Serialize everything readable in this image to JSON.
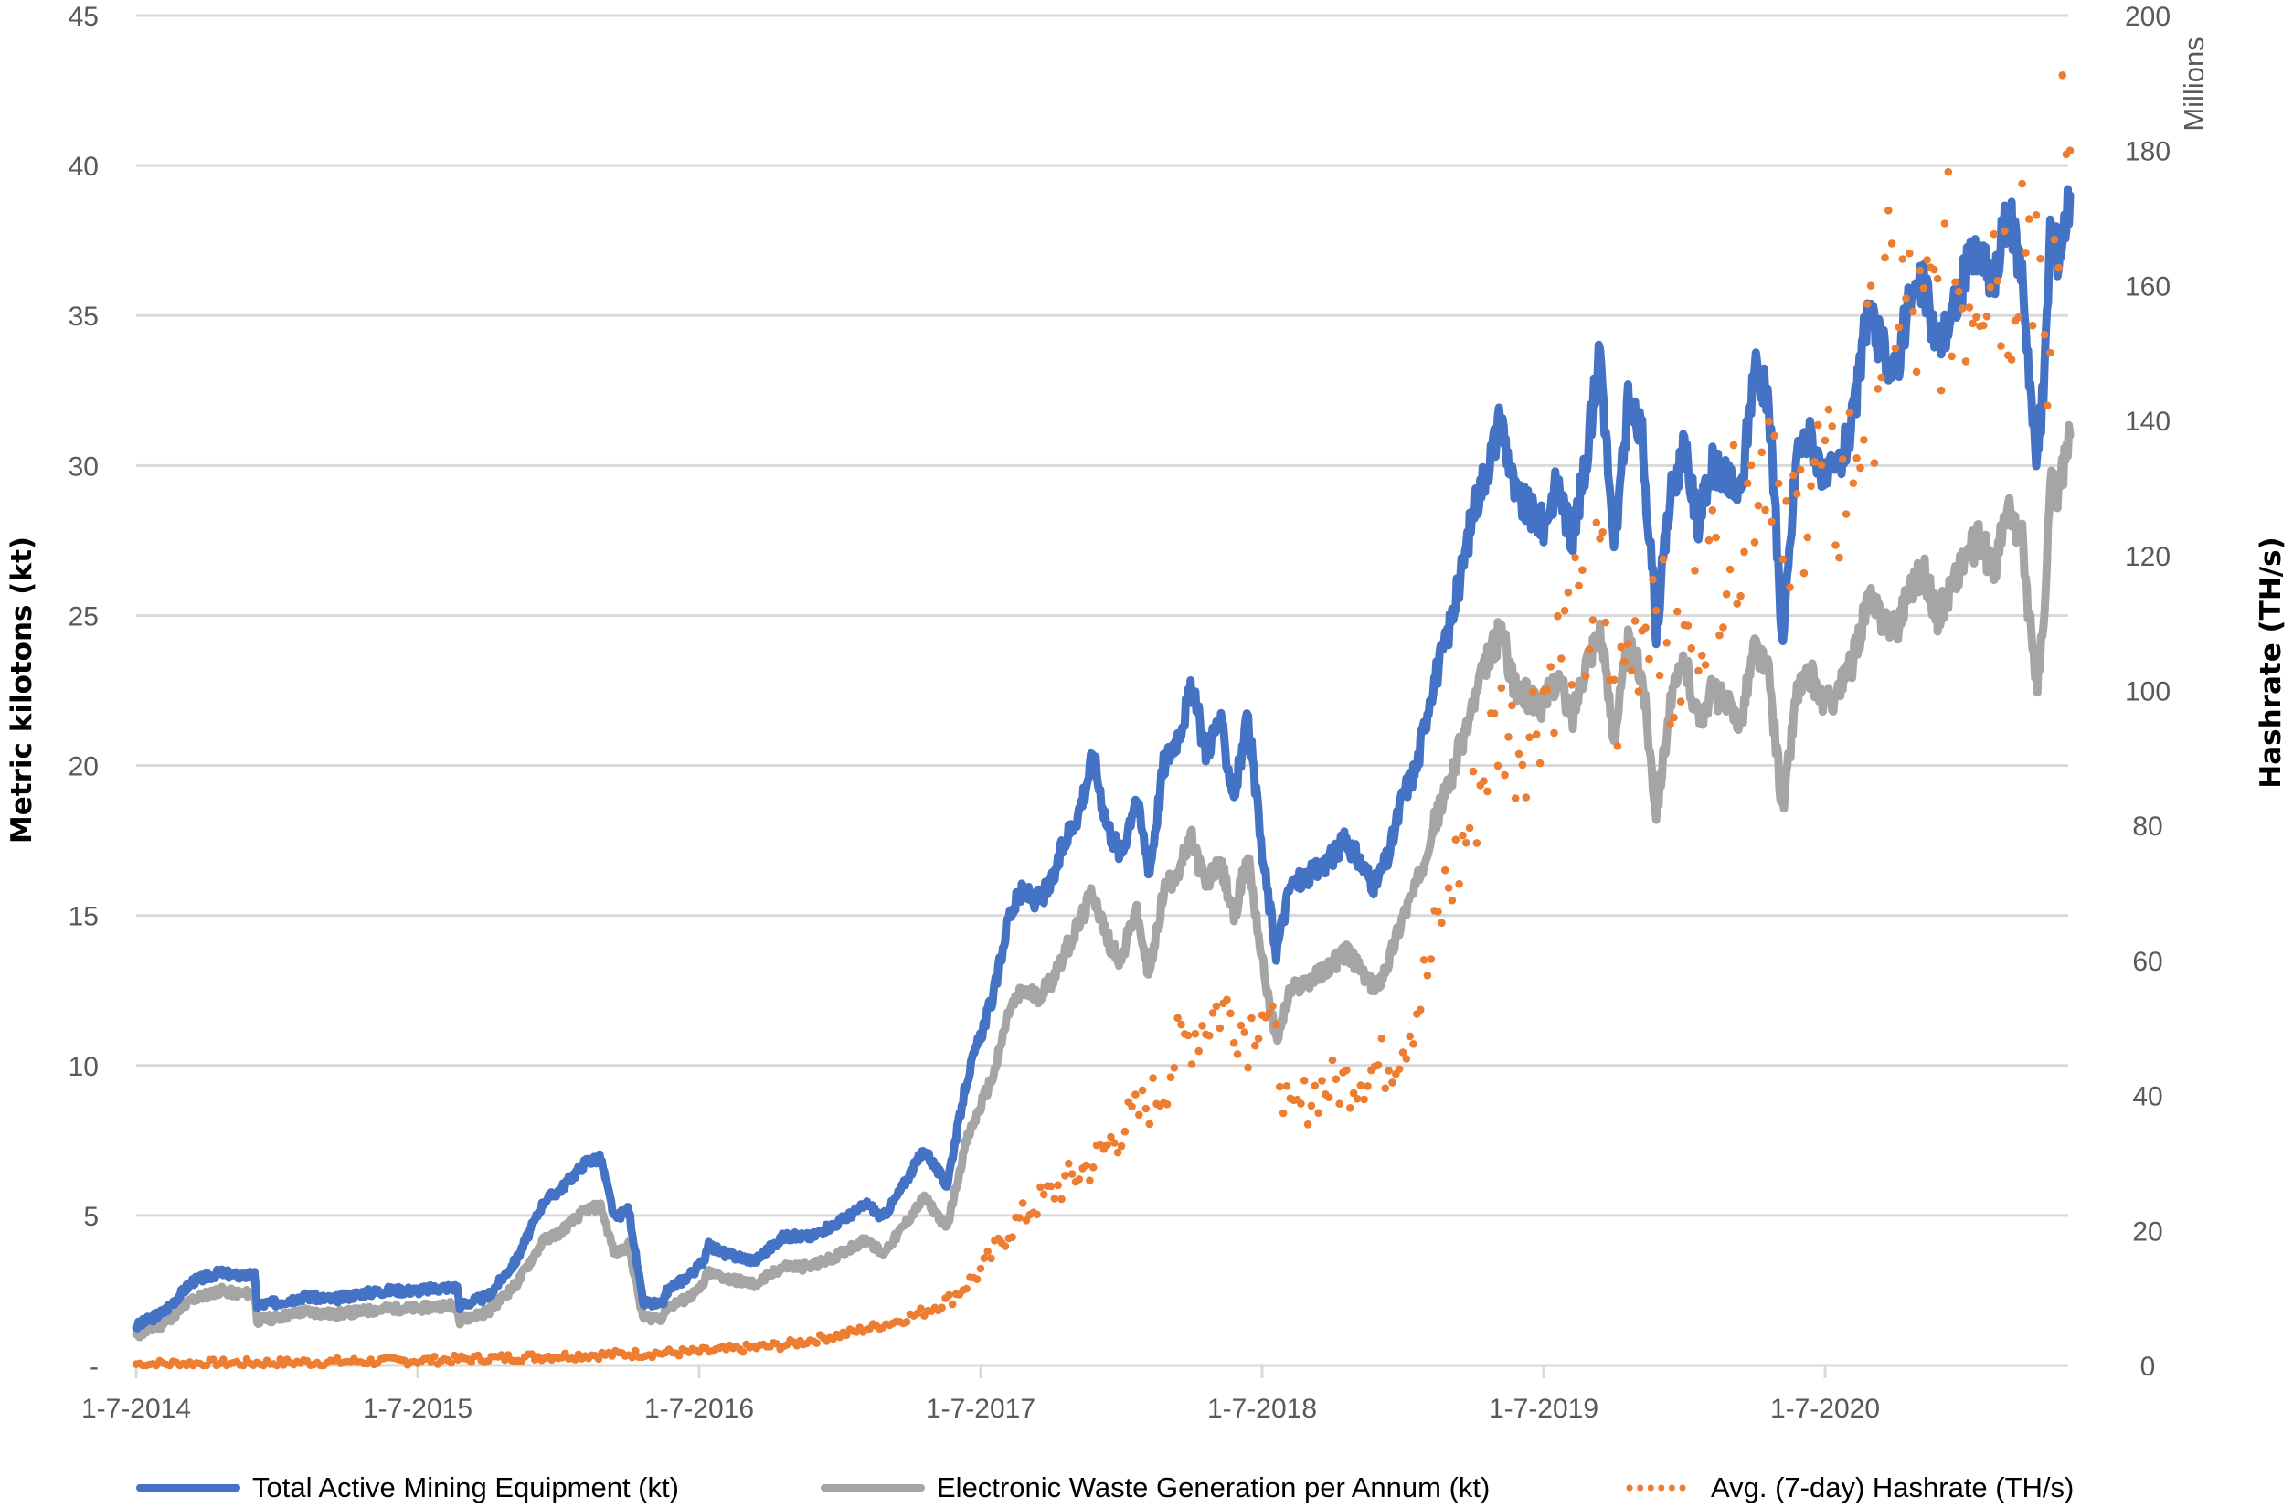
{
  "chart_data": {
    "type": "line",
    "title": "",
    "xlabel": "",
    "ylabel": "Metric kilotons (kt)",
    "y2label": "Hashrate (TH/s)",
    "y2_unit_label": "Millions",
    "ylim": [
      0,
      45
    ],
    "y2lim": [
      0,
      200
    ],
    "grid": true,
    "legend_position": "bottom",
    "x_tick_labels": [
      "1-7-2014",
      "1-7-2015",
      "1-7-2016",
      "1-7-2017",
      "1-7-2018",
      "1-7-2019",
      "1-7-2020"
    ],
    "y_tick_labels": [
      "-",
      "5",
      "10",
      "15",
      "20",
      "25",
      "30",
      "35",
      "40",
      "45"
    ],
    "y_tick_values": [
      0,
      5,
      10,
      15,
      20,
      25,
      30,
      35,
      40,
      45
    ],
    "y2_tick_labels": [
      "0",
      "20",
      "40",
      "60",
      "80",
      "100",
      "120",
      "140",
      "160",
      "180",
      "200"
    ],
    "y2_tick_values": [
      0,
      20,
      40,
      60,
      80,
      100,
      120,
      140,
      160,
      180,
      200
    ],
    "x_start_year": 2014.5,
    "x_end_year": 2021.37,
    "series": [
      {
        "name": "Total Active Mining Equipment (kt)",
        "axis": "left",
        "color": "#4472C4",
        "style": "solid",
        "x": [
          2014.5,
          2014.6,
          2014.7,
          2014.8,
          2014.85,
          2014.92,
          2014.93,
          2015.0,
          2015.1,
          2015.2,
          2015.3,
          2015.4,
          2015.5,
          2015.6,
          2015.64,
          2015.65,
          2015.75,
          2015.85,
          2015.95,
          2016.0,
          2016.05,
          2016.1,
          2016.15,
          2016.2,
          2016.25,
          2016.3,
          2016.37,
          2016.38,
          2016.4,
          2016.45,
          2016.5,
          2016.52,
          2016.53,
          2016.6,
          2016.7,
          2016.8,
          2016.9,
          2017.0,
          2017.05,
          2017.1,
          2017.15,
          2017.2,
          2017.3,
          2017.38,
          2017.45,
          2017.55,
          2017.6,
          2017.65,
          2017.7,
          2017.75,
          2017.8,
          2017.85,
          2017.9,
          2017.95,
          2018.0,
          2018.05,
          2018.1,
          2018.15,
          2018.2,
          2018.25,
          2018.3,
          2018.35,
          2018.4,
          2018.45,
          2018.5,
          2018.55,
          2018.6,
          2018.7,
          2018.8,
          2018.9,
          2018.95,
          2019.0,
          2019.05,
          2019.1,
          2019.15,
          2019.2,
          2019.25,
          2019.3,
          2019.35,
          2019.4,
          2019.5,
          2019.55,
          2019.6,
          2019.65,
          2019.7,
          2019.75,
          2019.8,
          2019.85,
          2019.9,
          2019.95,
          2020.0,
          2020.05,
          2020.1,
          2020.15,
          2020.2,
          2020.25,
          2020.3,
          2020.35,
          2020.4,
          2020.45,
          2020.5,
          2020.55,
          2020.6,
          2020.65,
          2020.7,
          2020.75,
          2020.8,
          2020.85,
          2020.9,
          2020.95,
          2021.0,
          2021.05,
          2021.1,
          2021.15,
          2021.2,
          2021.25,
          2021.28,
          2021.3,
          2021.33,
          2021.37
        ],
        "values": [
          1.3,
          1.8,
          2.8,
          3.1,
          3.0,
          3.0,
          2.0,
          2.1,
          2.3,
          2.2,
          2.4,
          2.5,
          2.5,
          2.6,
          2.6,
          2.0,
          2.3,
          3.5,
          5.5,
          5.8,
          6.3,
          6.8,
          6.9,
          4.9,
          5.2,
          2.1,
          2.0,
          2.4,
          2.6,
          2.9,
          3.3,
          3.6,
          4.0,
          3.7,
          3.5,
          4.3,
          4.3,
          4.8,
          5.1,
          5.4,
          4.9,
          5.6,
          7.2,
          6.0,
          9.5,
          12.5,
          15.0,
          15.8,
          15.5,
          16.0,
          17.5,
          18.5,
          20.3,
          18.0,
          17.0,
          19.0,
          16.5,
          20.0,
          21.0,
          22.5,
          20.5,
          21.5,
          19.0,
          21.5,
          17.0,
          13.8,
          16.0,
          16.5,
          17.5,
          16.0,
          17.0,
          19.0,
          20.0,
          22.5,
          24.0,
          26.0,
          28.5,
          30.0,
          31.5,
          29.0,
          28.0,
          29.5,
          27.5,
          30.0,
          34.0,
          27.0,
          32.0,
          31.0,
          24.5,
          29.0,
          30.5,
          28.0,
          30.0,
          29.5,
          29.0,
          33.5,
          32.0,
          24.0,
          30.5,
          31.0,
          29.5,
          30.0,
          31.5,
          35.0,
          34.0,
          33.0,
          35.5,
          36.0,
          34.0,
          35.0,
          36.5,
          37.0,
          36.0,
          38.5,
          36.5,
          30.0,
          33.0,
          38.0,
          37.0,
          39.0
        ]
      },
      {
        "name": "Electronic Waste Generation per Annum (kt)",
        "axis": "left",
        "color": "#A5A5A5",
        "style": "solid",
        "x": [
          2014.5,
          2014.6,
          2014.7,
          2014.8,
          2014.85,
          2014.92,
          2014.93,
          2015.0,
          2015.1,
          2015.2,
          2015.3,
          2015.4,
          2015.5,
          2015.6,
          2015.64,
          2015.65,
          2015.75,
          2015.85,
          2015.95,
          2016.0,
          2016.05,
          2016.1,
          2016.15,
          2016.2,
          2016.25,
          2016.3,
          2016.37,
          2016.38,
          2016.4,
          2016.45,
          2016.5,
          2016.52,
          2016.53,
          2016.6,
          2016.7,
          2016.8,
          2016.9,
          2017.0,
          2017.05,
          2017.1,
          2017.15,
          2017.2,
          2017.3,
          2017.38,
          2017.45,
          2017.55,
          2017.6,
          2017.65,
          2017.7,
          2017.75,
          2017.8,
          2017.85,
          2017.9,
          2017.95,
          2018.0,
          2018.05,
          2018.1,
          2018.15,
          2018.2,
          2018.25,
          2018.3,
          2018.35,
          2018.4,
          2018.45,
          2018.5,
          2018.55,
          2018.6,
          2018.7,
          2018.8,
          2018.9,
          2018.95,
          2019.0,
          2019.05,
          2019.1,
          2019.15,
          2019.2,
          2019.25,
          2019.3,
          2019.35,
          2019.4,
          2019.5,
          2019.55,
          2019.6,
          2019.65,
          2019.7,
          2019.75,
          2019.8,
          2019.85,
          2019.9,
          2019.95,
          2020.0,
          2020.05,
          2020.1,
          2020.15,
          2020.2,
          2020.25,
          2020.3,
          2020.35,
          2020.4,
          2020.45,
          2020.5,
          2020.55,
          2020.6,
          2020.65,
          2020.7,
          2020.75,
          2020.8,
          2020.85,
          2020.9,
          2020.95,
          2021.0,
          2021.05,
          2021.1,
          2021.15,
          2021.2,
          2021.25,
          2021.28,
          2021.3,
          2021.33,
          2021.37
        ],
        "values": [
          1.0,
          1.4,
          2.2,
          2.5,
          2.4,
          2.4,
          1.5,
          1.6,
          1.8,
          1.7,
          1.8,
          1.9,
          1.9,
          2.0,
          2.0,
          1.5,
          1.8,
          2.7,
          4.2,
          4.4,
          4.8,
          5.2,
          5.3,
          3.7,
          4.0,
          1.6,
          1.6,
          1.9,
          2.0,
          2.2,
          2.5,
          2.8,
          3.1,
          2.9,
          2.7,
          3.3,
          3.3,
          3.7,
          4.0,
          4.2,
          3.7,
          4.3,
          5.6,
          4.6,
          7.5,
          9.8,
          11.8,
          12.5,
          12.3,
          12.8,
          13.8,
          14.7,
          15.8,
          14.2,
          13.5,
          15.2,
          13.0,
          15.8,
          16.5,
          17.5,
          16.0,
          16.8,
          15.0,
          17.0,
          13.5,
          10.8,
          12.5,
          13.0,
          13.8,
          12.5,
          13.5,
          15.0,
          16.0,
          17.8,
          19.0,
          20.5,
          22.0,
          23.5,
          24.5,
          22.5,
          22.0,
          23.0,
          21.5,
          23.5,
          24.5,
          21.0,
          24.0,
          23.0,
          18.5,
          22.0,
          23.5,
          21.5,
          22.5,
          22.0,
          21.5,
          24.0,
          23.0,
          18.5,
          22.5,
          23.0,
          22.0,
          22.5,
          23.5,
          25.5,
          25.0,
          24.5,
          26.0,
          26.5,
          25.0,
          26.0,
          27.0,
          27.5,
          26.5,
          28.5,
          27.5,
          22.5,
          25.0,
          29.5,
          29.0,
          31.0
        ]
      },
      {
        "name": "Avg. (7-day) Hashrate (TH/s)",
        "axis": "right",
        "unit_multiplier": "Millions",
        "color": "#ED7D31",
        "style": "dotted",
        "x": [
          2014.5,
          2015.0,
          2015.5,
          2016.0,
          2016.5,
          2016.8,
          2017.0,
          2017.2,
          2017.3,
          2017.4,
          2017.5,
          2017.6,
          2017.7,
          2017.8,
          2017.9,
          2018.0,
          2018.1,
          2018.15,
          2018.2,
          2018.3,
          2018.35,
          2018.4,
          2018.45,
          2018.5,
          2018.55,
          2018.6,
          2018.65,
          2018.7,
          2018.8,
          2018.9,
          2018.95,
          2019.0,
          2019.05,
          2019.1,
          2019.15,
          2019.2,
          2019.25,
          2019.3,
          2019.35,
          2019.4,
          2019.45,
          2019.5,
          2019.55,
          2019.6,
          2019.65,
          2019.7,
          2019.72,
          2019.75,
          2019.8,
          2019.85,
          2019.9,
          2019.95,
          2020.0,
          2020.05,
          2020.1,
          2020.15,
          2020.2,
          2020.25,
          2020.3,
          2020.32,
          2020.35,
          2020.4,
          2020.45,
          2020.5,
          2020.55,
          2020.6,
          2020.65,
          2020.7,
          2020.75,
          2020.8,
          2020.85,
          2020.9,
          2020.95,
          2021.0,
          2021.05,
          2021.1,
          2021.15,
          2021.2,
          2021.25,
          2021.28,
          2021.3,
          2021.33,
          2021.37
        ],
        "values": [
          0.2,
          0.4,
          0.7,
          1.4,
          2.0,
          3.0,
          4.5,
          6.5,
          8.0,
          10.0,
          14.0,
          20.0,
          24.0,
          27.0,
          30.0,
          35.0,
          39.0,
          41.0,
          47.0,
          51.0,
          53.0,
          52.0,
          49.0,
          54.0,
          47.0,
          36.0,
          39.0,
          41.0,
          42.0,
          44.0,
          45.0,
          48.0,
          53.0,
          60.0,
          70.0,
          75.0,
          82.0,
          90.0,
          96.0,
          92.0,
          94.0,
          100.0,
          105.0,
          110.0,
          108.0,
          118.0,
          112.0,
          96.0,
          105.0,
          110.0,
          118.0,
          100.0,
          105.0,
          112.0,
          118.0,
          122.0,
          126.0,
          132.0,
          140.0,
          136.0,
          115.0,
          125.0,
          135.0,
          130.0,
          128.0,
          135.0,
          145.0,
          152.0,
          160.0,
          155.0,
          152.0,
          158.0,
          162.0,
          160.0,
          165.0,
          168.0,
          160.0,
          172.0,
          167.0,
          140.0,
          150.0,
          175.0,
          180.0
        ]
      }
    ]
  },
  "legend": {
    "items": [
      {
        "label": "Total Active Mining Equipment (kt)",
        "color": "#4472C4",
        "style": "solid"
      },
      {
        "label": "Electronic Waste Generation per Annum (kt)",
        "color": "#A5A5A5",
        "style": "solid"
      },
      {
        "label": "Avg. (7-day) Hashrate (TH/s)",
        "color": "#ED7D31",
        "style": "dotted"
      }
    ]
  },
  "axes": {
    "left_title": "Metric kilotons (kt)",
    "right_title": "Hashrate (TH/s)",
    "right_unit": "Millions"
  }
}
